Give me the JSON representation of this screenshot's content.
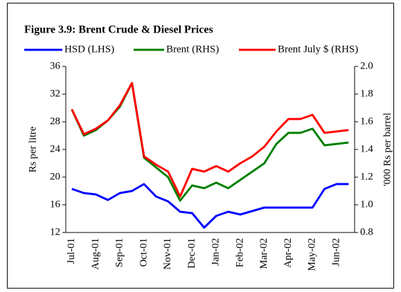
{
  "chart_data": {
    "type": "line",
    "title": "Figure 3.9: Brent Crude & Diesel Prices",
    "y_label": "Rs per litre",
    "y2_label": "'000 Rs per barrel",
    "categories": [
      "Jul-01",
      null,
      "Aug-01",
      null,
      "Sep-01",
      null,
      "Oct-01",
      null,
      "Nov-01",
      null,
      "Dec-01",
      null,
      "Jan-02",
      null,
      "Feb-02",
      null,
      "Mar-02",
      null,
      "Apr-02",
      null,
      "May-02",
      null,
      "Jun-02",
      null
    ],
    "ylim": [
      12,
      36
    ],
    "yticks": [
      12,
      16,
      20,
      24,
      28,
      32,
      36
    ],
    "y2lim": [
      0.8,
      2.0
    ],
    "y2ticks": [
      0.8,
      {
        "value": 1.0,
        "label": "1.0"
      },
      1.2,
      1.4,
      1.6,
      1.8,
      {
        "value": 2.0,
        "label": "2.0"
      }
    ],
    "series": [
      {
        "name": "HSD (LHS)",
        "color": "#0000ff",
        "values": [
          18.3,
          17.7,
          17.5,
          16.7,
          17.7,
          18.0,
          19.0,
          17.2,
          16.5,
          15.0,
          14.8,
          12.7,
          14.4,
          15.0,
          14.6,
          15.1,
          15.6,
          15.6,
          15.6,
          15.6,
          15.6,
          18.3,
          19.0,
          19.0
        ]
      },
      {
        "name": "Brent (RHS)",
        "color": "#008000",
        "axis": "y2",
        "values": [
          1.69,
          1.5,
          1.54,
          1.61,
          1.71,
          1.88,
          1.34,
          1.27,
          1.2,
          1.03,
          1.14,
          1.12,
          1.16,
          1.12,
          1.18,
          1.24,
          1.3,
          1.44,
          1.52,
          1.52,
          1.55,
          1.43,
          1.44,
          1.45
        ]
      },
      {
        "name": "Brent July $ (RHS)",
        "color": "#ff0000",
        "axis": "y2",
        "values": [
          1.69,
          1.51,
          1.55,
          1.61,
          1.72,
          1.88,
          1.35,
          1.29,
          1.24,
          1.06,
          1.26,
          1.24,
          1.28,
          1.24,
          1.3,
          1.35,
          1.42,
          1.53,
          1.62,
          1.62,
          1.65,
          1.52,
          1.53,
          1.54
        ]
      }
    ]
  }
}
